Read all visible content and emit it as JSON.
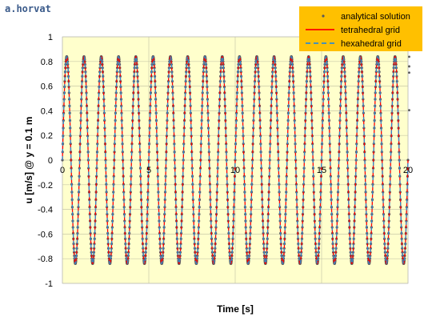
{
  "watermark": "a.horvat",
  "chart_data": {
    "type": "line",
    "xlabel": "Time [s]",
    "ylabel": "u [m/s]  @ y = 0.1 m",
    "xlim": [
      0,
      20
    ],
    "ylim": [
      -1,
      1
    ],
    "xticks": [
      "0",
      "5",
      "10",
      "15",
      "20"
    ],
    "yticks": [
      "1",
      "0.8",
      "0.6",
      "0.4",
      "0.2",
      "0",
      "-0.2",
      "-0.4",
      "-0.6",
      "-0.8",
      "-1"
    ],
    "grid": true,
    "legend_position": "top-right",
    "plot_background": "#ffffcc",
    "legend_background": "#ffc000",
    "signal": {
      "amplitude": 0.84,
      "frequency_hz": 1.0,
      "phase": "sine",
      "duration": 20
    },
    "series": [
      {
        "name": "analytical solution",
        "style": "dots",
        "color": "#595959"
      },
      {
        "name": "tetrahedral grid",
        "style": "solid",
        "color": "#ff0000"
      },
      {
        "name": "hexahedral grid",
        "style": "dashed",
        "color": "#2e8bd0"
      }
    ]
  }
}
